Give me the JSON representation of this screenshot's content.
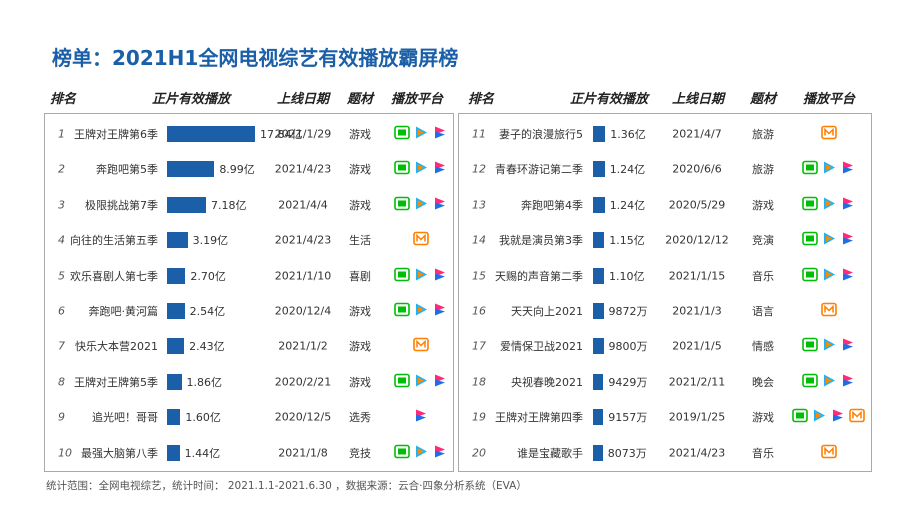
{
  "title": "榜单：2021H1全网电视综艺有效播放霸屏榜",
  "headers": [
    "排名",
    "正片有效播放",
    "上线日期",
    "题材",
    "播放平台"
  ],
  "rows": [
    [
      "1",
      "王牌对王牌第6季",
      {
        "value": 17.84,
        "label": "17.84亿"
      },
      "2021/1/29",
      "游戏"
    ],
    [
      "2",
      "奔跑吧第5季",
      {
        "value": 8.99,
        "label": "8.99亿"
      },
      "2021/4/23",
      "游戏"
    ],
    [
      "3",
      "极限挑战第7季",
      {
        "value": 7.18,
        "label": "7.18亿"
      },
      "2021/4/4",
      "游戏"
    ],
    [
      "4",
      "向往的生活第五季",
      {
        "value": 3.19,
        "label": "3.19亿"
      },
      "2021/4/23",
      "生活"
    ],
    [
      "5",
      "欢乐喜剧人第七季",
      {
        "value": 2.7,
        "label": "2.70亿"
      },
      "2021/1/10",
      "喜剧"
    ],
    [
      "6",
      "奔跑吧·黄河篇",
      {
        "value": 2.54,
        "label": "2.54亿"
      },
      "2020/12/4",
      "游戏"
    ],
    [
      "7",
      "快乐大本营2021",
      {
        "value": 2.43,
        "label": "2.43亿"
      },
      "2021/1/2",
      "游戏"
    ],
    [
      "8",
      "王牌对王牌第5季",
      {
        "value": 1.86,
        "label": "1.86亿"
      },
      "2020/2/21",
      "游戏"
    ],
    [
      "9",
      "追光吧！哥哥",
      {
        "value": 1.6,
        "label": "1.60亿"
      },
      "2020/12/5",
      "选秀"
    ],
    [
      "10",
      "最强大脑第八季",
      {
        "value": 1.44,
        "label": "1.44亿"
      },
      "2021/1/8",
      "竞技"
    ],
    [
      "11",
      "妻子的浪漫旅行5",
      {
        "value": 1.36,
        "label": "1.36亿"
      },
      "2021/4/7",
      "旅游"
    ],
    [
      "12",
      "青春环游记第二季",
      {
        "value": 1.24,
        "label": "1.24亿"
      },
      "2020/6/6",
      "旅游"
    ],
    [
      "13",
      "奔跑吧第4季",
      {
        "value": 1.24,
        "label": "1.24亿"
      },
      "2020/5/29",
      "游戏"
    ],
    [
      "14",
      "我就是演员第3季",
      {
        "value": 1.15,
        "label": "1.15亿"
      },
      "2020/12/12",
      "竞演"
    ],
    [
      "15",
      "天赐的声音第二季",
      {
        "value": 1.1,
        "label": "1.10亿"
      },
      "2021/1/15",
      "音乐"
    ],
    [
      "16",
      "天天向上2021",
      {
        "value": 0.9872,
        "label": "9872万"
      },
      "2021/1/3",
      "语言"
    ],
    [
      "17",
      "爱情保卫战2021",
      {
        "value": 0.98,
        "label": "9800万"
      },
      "2021/1/5",
      "情感"
    ],
    [
      "18",
      "央视春晚2021",
      {
        "value": 0.9429,
        "label": "9429万"
      },
      "2021/2/11",
      "晚会"
    ],
    [
      "19",
      "王牌对王牌第四季",
      {
        "value": 0.9157,
        "label": "9157万"
      },
      "2019/1/25",
      "游戏"
    ],
    [
      "20",
      "谁是宝藏歌手",
      {
        "value": 0.8073,
        "label": "8073万"
      },
      "2021/4/23",
      "音乐"
    ]
  ],
  "footnote": "统计范围：全网电视综艺，统计时间： 2021.1.1-2021.6.30 ，数据来源：云合·四象分析系统（EVA）"
}
